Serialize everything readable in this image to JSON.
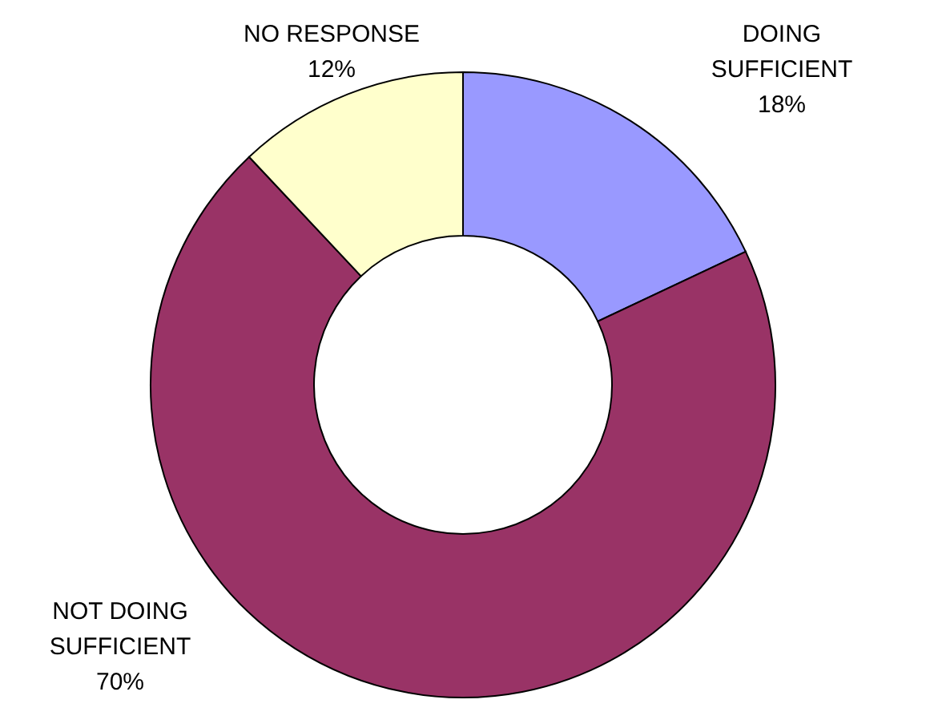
{
  "chart_data": {
    "type": "donut",
    "categories": [
      "DOING SUFFICIENT",
      "NOT DOING SUFFICIENT",
      "NO RESPONSE"
    ],
    "values": [
      18,
      70,
      12
    ],
    "value_labels": [
      "18%",
      "70%",
      "12%"
    ],
    "colors": [
      "#9999ff",
      "#993366",
      "#ffffcc"
    ],
    "legend": false
  }
}
